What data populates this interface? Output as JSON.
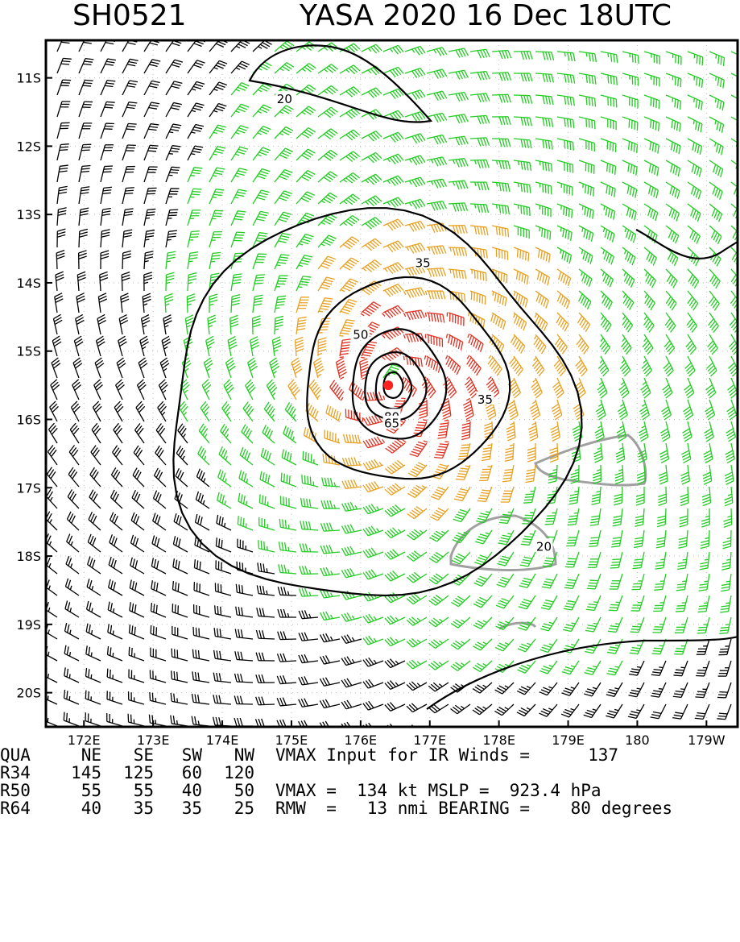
{
  "header": {
    "storm_id": "SH0521",
    "storm_title": "YASA 2020 16 Dec 18UTC"
  },
  "map": {
    "lat_labels": [
      "11S",
      "12S",
      "13S",
      "14S",
      "15S",
      "16S",
      "17S",
      "18S",
      "19S",
      "20S"
    ],
    "lat_values": [
      -11,
      -12,
      -13,
      -14,
      -15,
      -16,
      -17,
      -18,
      -19,
      -20
    ],
    "lon_labels": [
      "172E",
      "173E",
      "174E",
      "175E",
      "176E",
      "177E",
      "178E",
      "179E",
      "180",
      "179W"
    ],
    "lon_values": [
      172,
      173,
      174,
      175,
      176,
      177,
      178,
      179,
      180,
      181
    ],
    "extent": {
      "lon_min": 171.45,
      "lon_max": 181.45,
      "lat_min": -20.5,
      "lat_max": -10.45
    },
    "storm_center": {
      "lon": 176.4,
      "lat": -15.5
    },
    "contour_labels": [
      {
        "text": "20",
        "lon": 174.9,
        "lat": -11.3
      },
      {
        "text": "35",
        "lon": 176.9,
        "lat": -13.7
      },
      {
        "text": "50",
        "lon": 176.0,
        "lat": -14.75
      },
      {
        "text": "35",
        "lon": 177.8,
        "lat": -15.7
      },
      {
        "text": "80",
        "lon": 176.45,
        "lat": -15.95
      },
      {
        "text": "65",
        "lon": 176.45,
        "lat": -16.05
      },
      {
        "text": "20",
        "lon": 178.65,
        "lat": -17.85
      }
    ],
    "colors": {
      "weak": "#000000",
      "gale": "#22cc22",
      "storm": "#e8a020",
      "hurricane": "#e03020",
      "land": "#a0a0a0",
      "center": "#ff2020"
    }
  },
  "footer": {
    "quadrant_headers": [
      "QUA",
      "NE",
      "SE",
      "SW",
      "NW"
    ],
    "radii": [
      {
        "label": "R34",
        "ne": "145",
        "se": "125",
        "sw": "60",
        "nw": "120"
      },
      {
        "label": "R50",
        "ne": "55",
        "se": "55",
        "sw": "40",
        "nw": "50"
      },
      {
        "label": "R64",
        "ne": "40",
        "se": "35",
        "sw": "35",
        "nw": "25"
      }
    ],
    "vmax_input_text": "VMAX Input for IR Winds =",
    "vmax_input_value": "137",
    "vmax_line": "VMAX =  134 kt MSLP =  923.4 hPa",
    "rmw_line": "RMW  =   13 nmi BEARING =    80 degrees"
  }
}
